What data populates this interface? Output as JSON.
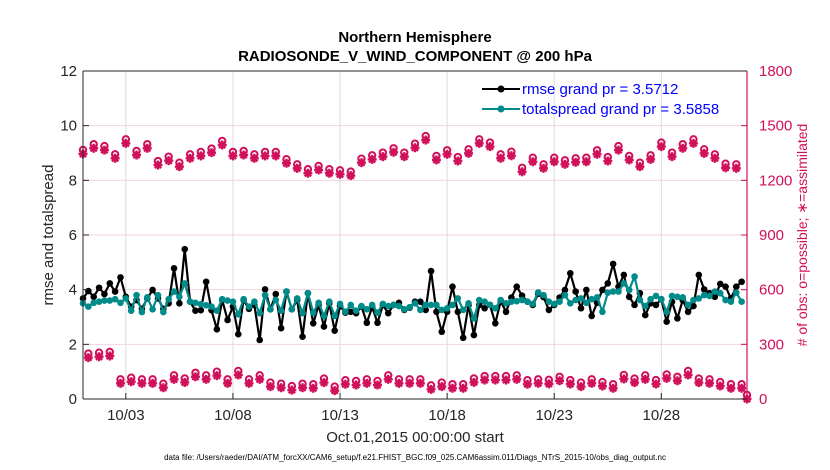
{
  "chart_data": {
    "type": "line",
    "title": "Northern Hemisphere",
    "subtitle": "RADIOSONDE_V_WIND_COMPONENT @ 200 hPa",
    "xlabel": "Oct.01,2015 00:00:00 start",
    "ylabel": "rmse and totalspread",
    "y2label": "# of obs: o=possible; ∗=assimilated",
    "footnote": "data file: /Users/raeder/DAI/ATM_forcXX/CAM6_setup/f.e21.FHIST_BGC.f09_025.CAM6assim.011/Diags_NTrS_2015-10/obs_diag_output.nc",
    "x_unit": "days since Oct.01,2015 00:00:00",
    "xlim": [
      0,
      31
    ],
    "ylim": [
      0,
      12
    ],
    "y2lim": [
      0,
      1800
    ],
    "x_ticks": [
      {
        "value": 2,
        "label": "10/03"
      },
      {
        "value": 7,
        "label": "10/08"
      },
      {
        "value": 12,
        "label": "10/13"
      },
      {
        "value": 17,
        "label": "10/18"
      },
      {
        "value": 22,
        "label": "10/23"
      },
      {
        "value": 27,
        "label": "10/28"
      }
    ],
    "y_ticks": [
      "0",
      "2",
      "4",
      "6",
      "8",
      "10",
      "12"
    ],
    "y2_ticks": [
      "0",
      "300",
      "600",
      "900",
      "1200",
      "1500",
      "1800"
    ],
    "grid": true,
    "legend_position": "top-right",
    "time_step_days": 0.25,
    "series": [
      {
        "name": "rmse",
        "legend": "rmse grand pr = 3.5712",
        "color": "#000000",
        "axis": "left",
        "values": [
          3.68,
          3.95,
          3.74,
          4.07,
          3.84,
          4.23,
          3.93,
          4.45,
          3.74,
          3.38,
          3.62,
          3.3,
          3.68,
          3.99,
          3.68,
          3.3,
          3.5,
          4.78,
          3.5,
          5.48,
          3.56,
          3.23,
          3.25,
          4.29,
          3.25,
          2.55,
          3.62,
          2.89,
          3.38,
          2.37,
          3.62,
          3.3,
          3.44,
          2.16,
          4.01,
          3.28,
          3.84,
          2.59,
          3.93,
          3.28,
          3.62,
          2.28,
          3.87,
          2.77,
          3.44,
          2.65,
          3.5,
          2.5,
          3.4,
          3.16,
          3.19,
          3.14,
          3.38,
          2.79,
          3.36,
          2.79,
          3.44,
          3.14,
          3.44,
          3.52,
          3.26,
          3.34,
          3.56,
          3.56,
          3.26,
          4.68,
          3.19,
          2.46,
          3.19,
          4.11,
          3.19,
          2.24,
          3.44,
          2.34,
          3.44,
          3.32,
          3.44,
          2.77,
          3.58,
          3.19,
          3.71,
          4.11,
          3.78,
          3.56,
          3.44,
          3.85,
          3.73,
          3.26,
          3.44,
          3.71,
          3.99,
          4.6,
          3.93,
          3.32,
          3.99,
          3.04,
          3.52,
          3.99,
          4.23,
          4.94,
          4.11,
          4.54,
          3.74,
          3.44,
          3.87,
          3.07,
          3.5,
          3.44,
          3.65,
          2.83,
          3.56,
          2.95,
          3.62,
          3.19,
          3.4,
          4.54,
          4.01,
          3.87,
          3.74,
          4.21,
          4.11,
          3.68,
          4.11,
          4.29
        ]
      },
      {
        "name": "totalspread",
        "legend": "totalspread grand pr = 3.5858",
        "color": "#008b8b",
        "axis": "left",
        "values": [
          3.5,
          3.38,
          3.52,
          3.56,
          3.6,
          3.6,
          3.65,
          3.52,
          3.68,
          3.23,
          3.8,
          3.18,
          3.72,
          3.28,
          3.8,
          3.18,
          3.65,
          3.93,
          3.74,
          4.23,
          3.56,
          3.52,
          3.47,
          3.43,
          3.38,
          3.23,
          3.65,
          3.6,
          3.56,
          3.1,
          3.65,
          3.38,
          3.56,
          3.14,
          3.8,
          3.28,
          3.62,
          3.23,
          3.93,
          3.28,
          3.68,
          3.14,
          3.87,
          3.16,
          3.52,
          3.04,
          3.56,
          3.04,
          3.48,
          3.19,
          3.44,
          3.23,
          3.4,
          3.28,
          3.44,
          3.16,
          3.48,
          3.4,
          3.44,
          3.4,
          3.28,
          3.36,
          3.5,
          3.26,
          3.44,
          3.44,
          3.44,
          3.26,
          3.32,
          3.44,
          3.68,
          3.26,
          3.5,
          2.95,
          3.62,
          3.56,
          3.44,
          3.32,
          3.62,
          3.5,
          3.56,
          3.58,
          3.62,
          3.56,
          3.48,
          3.9,
          3.8,
          3.56,
          3.48,
          3.56,
          3.8,
          3.5,
          3.62,
          3.68,
          3.52,
          3.65,
          3.72,
          3.19,
          3.89,
          3.93,
          3.93,
          4.23,
          3.99,
          4.48,
          3.62,
          3.4,
          3.65,
          3.77,
          3.65,
          3.19,
          3.77,
          3.74,
          3.72,
          3.44,
          3.62,
          3.68,
          3.8,
          3.77,
          3.93,
          3.87,
          3.62,
          3.56,
          3.89,
          3.56
        ]
      },
      {
        "name": "obs_possible",
        "legend": "o=possible",
        "color": "#d0105a",
        "axis": "right",
        "marker": "circle",
        "values": [
          1345,
          227,
          1376,
          232,
          1366,
          236,
          1321,
          86,
          1403,
          95,
          1339,
          86,
          1376,
          86,
          1284,
          62,
          1308,
          108,
          1275,
          91,
          1321,
          122,
          1334,
          108,
          1352,
          128,
          1394,
          86,
          1334,
          132,
          1339,
          86,
          1321,
          108,
          1334,
          68,
          1334,
          62,
          1294,
          49,
          1266,
          62,
          1239,
          59,
          1257,
          90,
          1239,
          46,
          1233,
          81,
          1226,
          77,
          1297,
          86,
          1315,
          77,
          1330,
          108,
          1354,
          86,
          1330,
          86,
          1379,
          86,
          1421,
          53,
          1312,
          68,
          1343,
          59,
          1306,
          59,
          1348,
          91,
          1403,
          104,
          1385,
          104,
          1321,
          104,
          1335,
          108,
          1247,
          81,
          1302,
          86,
          1266,
          83,
          1302,
          100,
          1288,
          82,
          1299,
          68,
          1302,
          86,
          1343,
          71,
          1306,
          59,
          1366,
          110,
          1312,
          90,
          1275,
          108,
          1315,
          82,
          1385,
          113,
          1330,
          100,
          1376,
          132,
          1403,
          90,
          1348,
          86,
          1321,
          71,
          1269,
          59,
          1266,
          59,
          0
        ]
      },
      {
        "name": "obs_assimilated",
        "legend": "∗=assimilated",
        "color": "#d0105a",
        "axis": "right",
        "marker": "asterisk",
        "values": [
          1345,
          227,
          1376,
          232,
          1366,
          236,
          1321,
          86,
          1403,
          95,
          1339,
          86,
          1376,
          86,
          1284,
          62,
          1308,
          108,
          1275,
          91,
          1321,
          122,
          1334,
          108,
          1352,
          128,
          1394,
          86,
          1334,
          132,
          1339,
          86,
          1321,
          108,
          1334,
          68,
          1334,
          62,
          1294,
          49,
          1266,
          62,
          1239,
          59,
          1257,
          90,
          1239,
          46,
          1233,
          81,
          1226,
          77,
          1297,
          86,
          1315,
          77,
          1330,
          108,
          1354,
          86,
          1330,
          86,
          1379,
          86,
          1421,
          53,
          1312,
          68,
          1343,
          59,
          1306,
          59,
          1348,
          91,
          1403,
          104,
          1385,
          104,
          1321,
          104,
          1335,
          108,
          1247,
          81,
          1302,
          86,
          1266,
          83,
          1302,
          100,
          1288,
          82,
          1299,
          68,
          1302,
          86,
          1343,
          71,
          1306,
          59,
          1366,
          110,
          1312,
          90,
          1275,
          108,
          1315,
          82,
          1385,
          113,
          1330,
          100,
          1376,
          132,
          1403,
          90,
          1348,
          86,
          1321,
          71,
          1269,
          59,
          1266,
          59,
          0
        ]
      }
    ]
  }
}
